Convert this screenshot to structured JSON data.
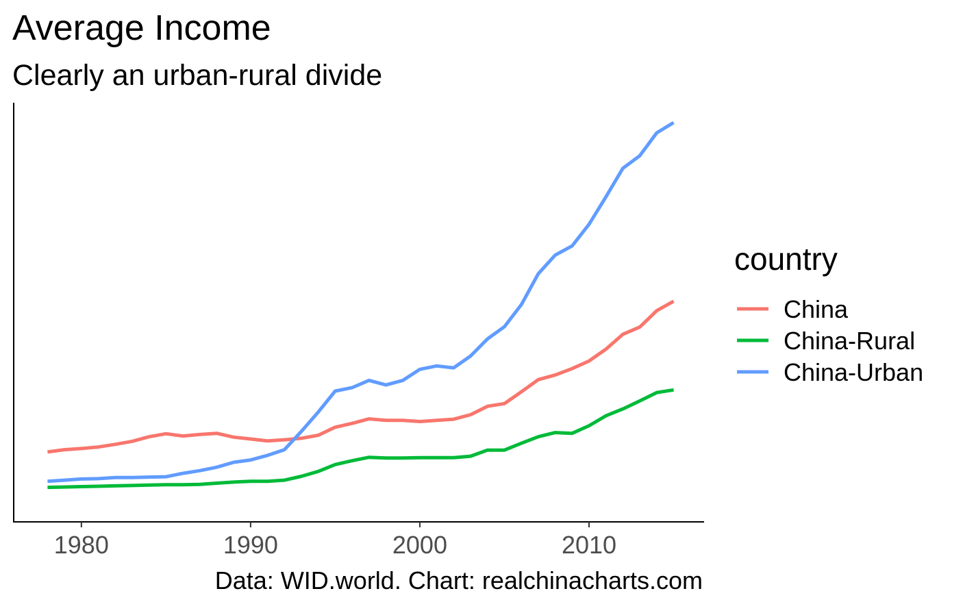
{
  "chart_data": {
    "type": "line",
    "title": "Average Income",
    "subtitle": "Clearly an urban-rural divide",
    "caption": "Data: WID.world. Chart: realchinacharts.com",
    "xlabel": "",
    "ylabel": "",
    "x_ticks": [
      "1980",
      "1990",
      "2000",
      "2010"
    ],
    "xlim": [
      1976.0,
      2016.8
    ],
    "ylim": [
      0,
      100
    ],
    "grid": false,
    "legend_position": "right",
    "legend_title": "country",
    "x": [
      1978,
      1979,
      1980,
      1981,
      1982,
      1983,
      1984,
      1985,
      1986,
      1987,
      1988,
      1989,
      1990,
      1991,
      1992,
      1993,
      1994,
      1995,
      1996,
      1997,
      1998,
      1999,
      2000,
      2001,
      2002,
      2003,
      2004,
      2005,
      2006,
      2007,
      2008,
      2009,
      2010,
      2011,
      2012,
      2013,
      2014,
      2015
    ],
    "series": [
      {
        "name": "China",
        "color": "#F8766D",
        "values": [
          13.5,
          14.1,
          14.4,
          14.8,
          15.5,
          16.3,
          17.5,
          18.3,
          17.7,
          18.1,
          18.4,
          17.4,
          16.9,
          16.4,
          16.7,
          17.1,
          17.9,
          20.0,
          21.0,
          22.2,
          21.8,
          21.8,
          21.5,
          21.8,
          22.1,
          23.3,
          25.5,
          26.2,
          29.3,
          32.5,
          33.7,
          35.4,
          37.4,
          40.5,
          44.4,
          46.3,
          50.6,
          53.1
        ]
      },
      {
        "name": "China-Rural",
        "color": "#00BA38",
        "values": [
          4.2,
          4.3,
          4.4,
          4.5,
          4.6,
          4.7,
          4.8,
          4.9,
          4.9,
          5.0,
          5.3,
          5.6,
          5.8,
          5.8,
          6.1,
          7.1,
          8.4,
          10.2,
          11.2,
          12.1,
          11.9,
          11.9,
          12.0,
          12.0,
          12.0,
          12.4,
          14.0,
          14.0,
          15.8,
          17.5,
          18.6,
          18.4,
          20.4,
          23.0,
          24.8,
          26.9,
          29.1,
          29.8
        ]
      },
      {
        "name": "China-Urban",
        "color": "#619CFF",
        "values": [
          5.8,
          6.1,
          6.4,
          6.5,
          6.8,
          6.8,
          6.9,
          7.0,
          7.9,
          8.6,
          9.5,
          10.8,
          11.4,
          12.6,
          14.1,
          18.9,
          24.0,
          29.5,
          30.4,
          32.3,
          31.1,
          32.3,
          35.2,
          36.1,
          35.6,
          38.7,
          43.2,
          46.4,
          52.2,
          60.3,
          65.2,
          67.6,
          73.3,
          80.5,
          88.0,
          91.3,
          97.3,
          100.0
        ]
      }
    ]
  }
}
